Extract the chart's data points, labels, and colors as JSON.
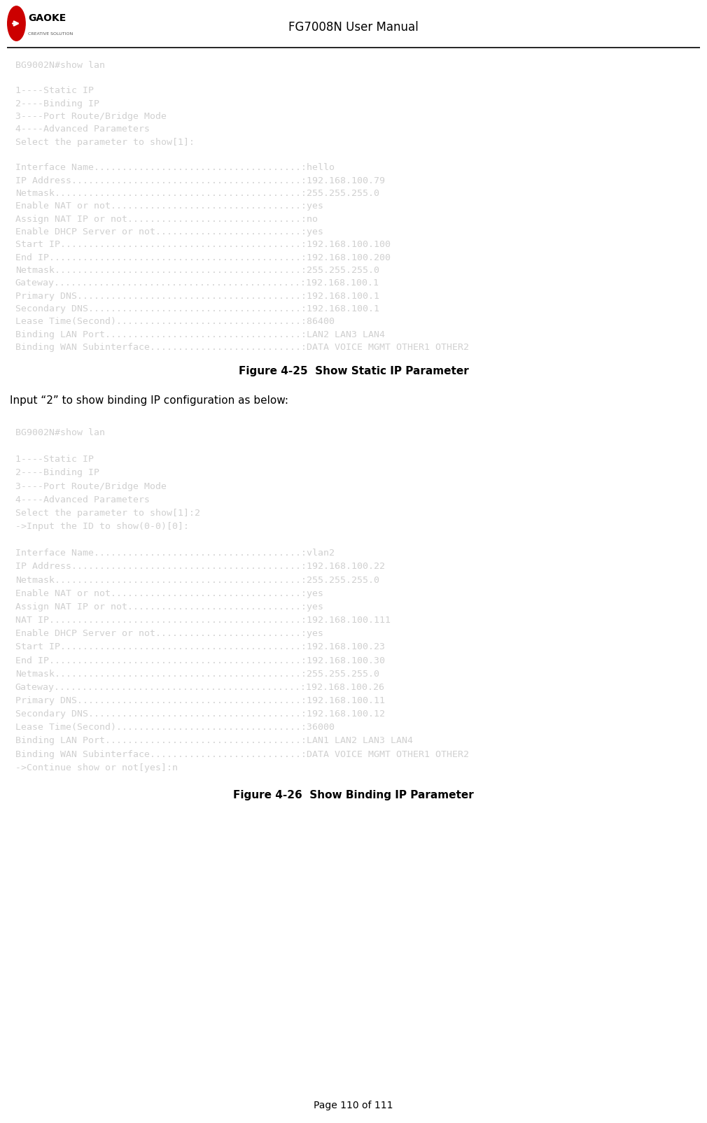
{
  "page_title": "FG7008N User Manual",
  "page_number": "Page 110 of 111",
  "fig1_caption": "Figure 4-25  Show Static IP Parameter",
  "fig2_caption": "Figure 4-26  Show Binding IP Parameter",
  "between_text": "Input “2” to show binding IP configuration as below:",
  "terminal1_lines": [
    "BG9002N#show lan",
    "",
    "1----Static IP",
    "2----Binding IP",
    "3----Port Route/Bridge Mode",
    "4----Advanced Parameters",
    "Select the parameter to show[1]:",
    "",
    "Interface Name.....................................:hello",
    "IP Address.........................................:192.168.100.79",
    "Netmask............................................:255.255.255.0",
    "Enable NAT or not..................................:yes",
    "Assign NAT IP or not...............................:no",
    "Enable DHCP Server or not..........................:yes",
    "Start IP...........................................:192.168.100.100",
    "End IP.............................................:192.168.100.200",
    "Netmask............................................:255.255.255.0",
    "Gateway............................................:192.168.100.1",
    "Primary DNS........................................:192.168.100.1",
    "Secondary DNS......................................:192.168.100.1",
    "Lease Time(Second).................................:86400",
    "Binding LAN Port...................................:LAN2 LAN3 LAN4",
    "Binding WAN Subinterface...........................:DATA VOICE MGMT OTHER1 OTHER2"
  ],
  "terminal2_lines": [
    "BG9002N#show lan",
    "",
    "1----Static IP",
    "2----Binding IP",
    "3----Port Route/Bridge Mode",
    "4----Advanced Parameters",
    "Select the parameter to show[1]:2",
    "->Input the ID to show(0-0)[0]:",
    "",
    "Interface Name.....................................:vlan2",
    "IP Address.........................................:192.168.100.22",
    "Netmask............................................:255.255.255.0",
    "Enable NAT or not..................................:yes",
    "Assign NAT IP or not...............................:yes",
    "NAT IP.............................................:192.168.100.111",
    "Enable DHCP Server or not..........................:yes",
    "Start IP...........................................:192.168.100.23",
    "End IP.............................................:192.168.100.30",
    "Netmask............................................:255.255.255.0",
    "Gateway............................................:192.168.100.26",
    "Primary DNS........................................:192.168.100.11",
    "Secondary DNS......................................:192.168.100.12",
    "Lease Time(Second).................................:36000",
    "Binding LAN Port...................................:LAN1 LAN2 LAN3 LAN4",
    "Binding WAN Subinterface...........................:DATA VOICE MGMT OTHER1 OTHER2",
    "->Continue show or not[yes]:n"
  ],
  "bg_color": "#000000",
  "text_color": "#d0d0d0",
  "page_bg": "#ffffff",
  "terminal_font_size": 9.5,
  "caption_font_size": 11,
  "between_text_font_size": 11,
  "logo_red": "#cc0000",
  "header_font_size": 12
}
